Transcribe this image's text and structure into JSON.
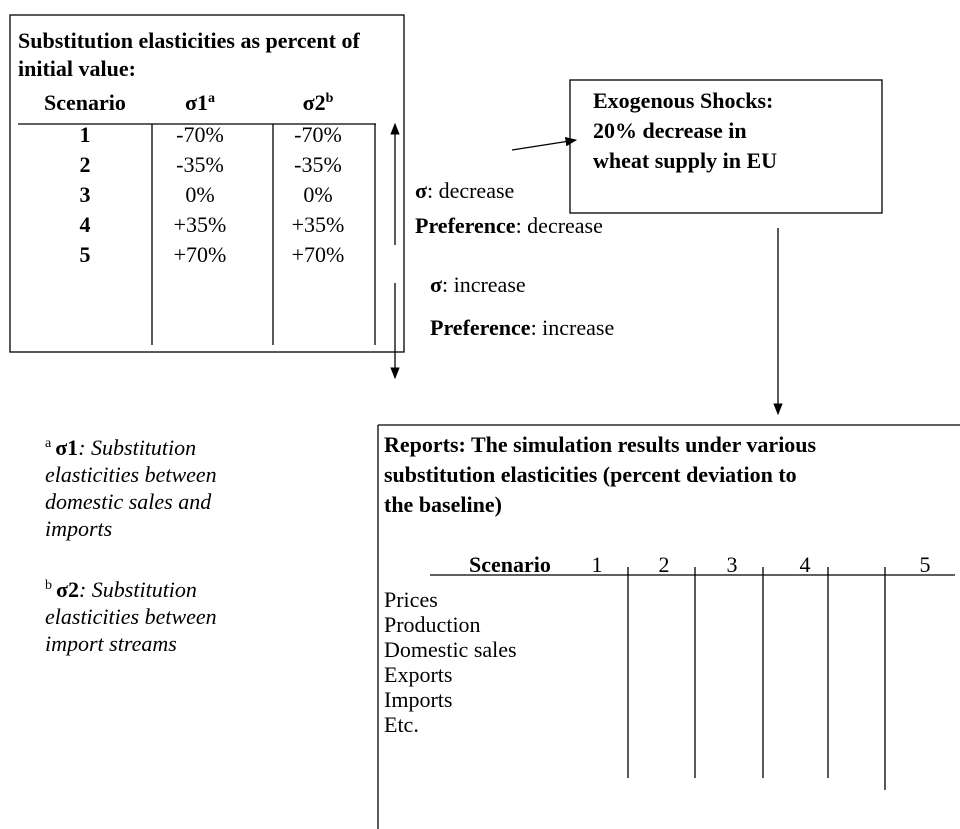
{
  "elasticities": {
    "title_lines": [
      "Substitution elasticities as percent of",
      "initial value:"
    ],
    "headers": [
      {
        "text": "Scenario"
      },
      {
        "text": "σ1",
        "sup": "a"
      },
      {
        "text": "σ2",
        "sup": "b"
      }
    ],
    "rows": [
      [
        "1",
        "-70%",
        "-70%"
      ],
      [
        "2",
        "-35%",
        "-35%"
      ],
      [
        "3",
        "0%",
        "0%"
      ],
      [
        "4",
        "+35%",
        "+35%"
      ],
      [
        "5",
        "+70%",
        "+70%"
      ]
    ]
  },
  "directions": {
    "decrease": {
      "sigma": "σ",
      "sigma_text": ": decrease",
      "preference": "Preference",
      "preference_text": ": decrease"
    },
    "increase": {
      "sigma": "σ",
      "sigma_text": ": increase",
      "preference": "Preference",
      "preference_text": ": increase"
    }
  },
  "shocks": {
    "lines": [
      "Exogenous Shocks:",
      "20% decrease in",
      "wheat supply in EU"
    ]
  },
  "notes": [
    {
      "marker": "a",
      "symbol": "σ1",
      "lines": [
        ": Substitution",
        "elasticities between",
        "domestic sales and",
        "imports"
      ]
    },
    {
      "marker": "b",
      "symbol": "σ2",
      "lines": [
        ": Substitution",
        "elasticities between",
        "import streams"
      ]
    }
  ],
  "reports": {
    "title_lines": [
      "Reports: The simulation results under various",
      "substitution elasticities (percent deviation to",
      "the baseline)"
    ],
    "header": "Scenario",
    "columns": [
      "1",
      "2",
      "3",
      "4",
      "5"
    ],
    "rows": [
      "Prices",
      "Production",
      "Domestic sales",
      "Exports",
      "Imports",
      "Etc."
    ]
  }
}
